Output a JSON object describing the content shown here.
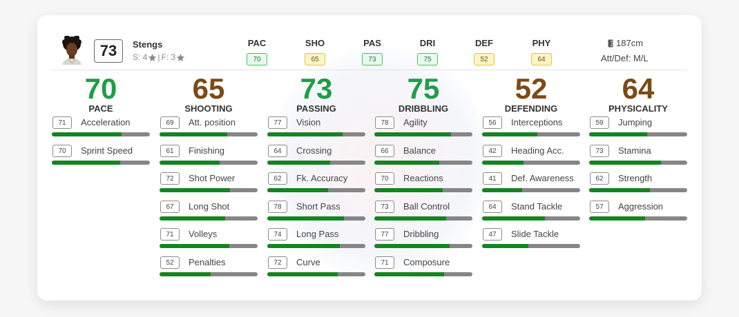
{
  "player": {
    "name": "Stengs",
    "overall": "73",
    "skills_label": "S: 4",
    "separator": "|",
    "foot_label": "F: 3"
  },
  "header_stats": [
    {
      "label": "PAC",
      "value": "70",
      "color": "green"
    },
    {
      "label": "SHO",
      "value": "65",
      "color": "yellow"
    },
    {
      "label": "PAS",
      "value": "73",
      "color": "green"
    },
    {
      "label": "DRI",
      "value": "75",
      "color": "green"
    },
    {
      "label": "DEF",
      "value": "52",
      "color": "yellow"
    },
    {
      "label": "PHY",
      "value": "64",
      "color": "yellow"
    }
  ],
  "physical": {
    "height": "187cm",
    "work_rates": "Att/Def: M/L"
  },
  "columns": [
    {
      "value": "70",
      "label": "PACE",
      "tone": "green",
      "attributes": [
        {
          "name": "Acceleration",
          "value": 71
        },
        {
          "name": "Sprint Speed",
          "value": 70
        }
      ]
    },
    {
      "value": "65",
      "label": "SHOOTING",
      "tone": "brown",
      "attributes": [
        {
          "name": "Att. position",
          "value": 69
        },
        {
          "name": "Finishing",
          "value": 61
        },
        {
          "name": "Shot Power",
          "value": 72
        },
        {
          "name": "Long Shot",
          "value": 67
        },
        {
          "name": "Volleys",
          "value": 71
        },
        {
          "name": "Penalties",
          "value": 52
        }
      ]
    },
    {
      "value": "73",
      "label": "PASSING",
      "tone": "green",
      "attributes": [
        {
          "name": "Vision",
          "value": 77
        },
        {
          "name": "Crossing",
          "value": 64
        },
        {
          "name": "Fk. Accuracy",
          "value": 62
        },
        {
          "name": "Short Pass",
          "value": 78
        },
        {
          "name": "Long Pass",
          "value": 74
        },
        {
          "name": "Curve",
          "value": 72
        }
      ]
    },
    {
      "value": "75",
      "label": "DRIBBLING",
      "tone": "green",
      "attributes": [
        {
          "name": "Agility",
          "value": 78
        },
        {
          "name": "Balance",
          "value": 66
        },
        {
          "name": "Reactions",
          "value": 70
        },
        {
          "name": "Ball Control",
          "value": 73
        },
        {
          "name": "Dribbling",
          "value": 77
        },
        {
          "name": "Composure",
          "value": 71
        }
      ]
    },
    {
      "value": "52",
      "label": "DEFENDING",
      "tone": "brown",
      "attributes": [
        {
          "name": "Interceptions",
          "value": 56
        },
        {
          "name": "Heading Acc.",
          "value": 42
        },
        {
          "name": "Def. Awareness",
          "value": 41
        },
        {
          "name": "Stand Tackle",
          "value": 64
        },
        {
          "name": "Slide Tackle",
          "value": 47
        }
      ]
    },
    {
      "value": "64",
      "label": "PHYSICALITY",
      "tone": "brown",
      "attributes": [
        {
          "name": "Jumping",
          "value": 59
        },
        {
          "name": "Stamina",
          "value": 73
        },
        {
          "name": "Strength",
          "value": 62
        },
        {
          "name": "Aggression",
          "value": 57
        }
      ]
    }
  ],
  "colors": {
    "green_rating": "#1f9d47",
    "brown_rating": "#7b4a16",
    "bar_fill": "#13851f",
    "bar_track": "#868686"
  }
}
